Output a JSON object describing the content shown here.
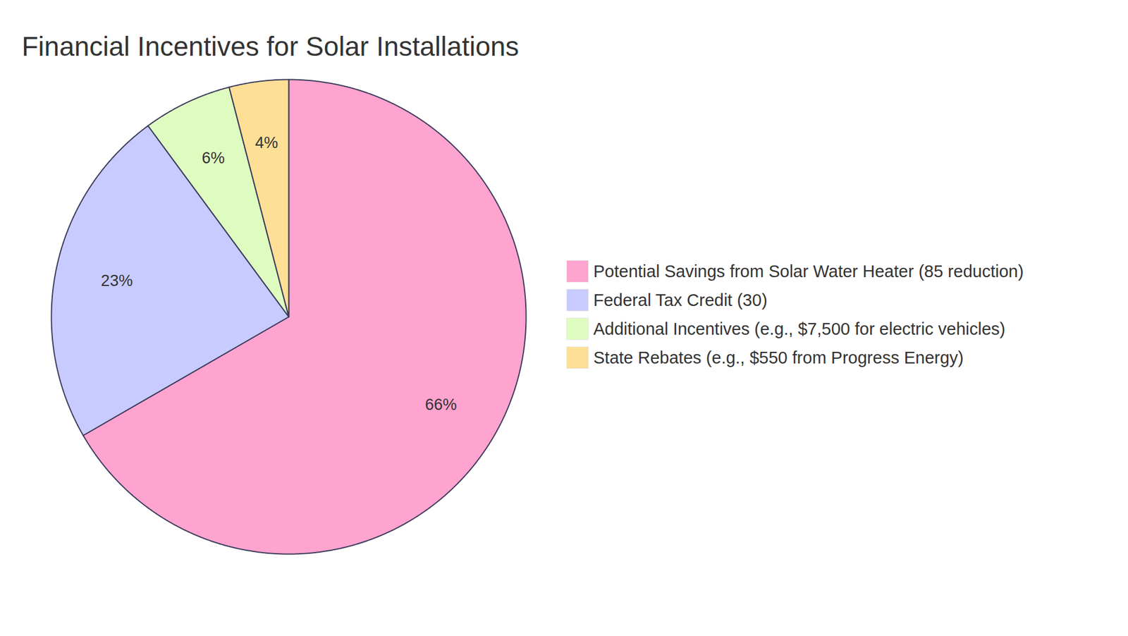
{
  "chart_data": {
    "type": "pie",
    "title": "Financial Incentives for Solar Installations",
    "categories": [
      "Potential Savings from Solar Water Heater (85 reduction)",
      "Federal Tax Credit (30)",
      "Additional Incentives (e.g., $7,500 for electric vehicles)",
      "State Rebates (e.g., $550 from Progress Energy)"
    ],
    "values": [
      66,
      23,
      6,
      4
    ],
    "value_labels": [
      "66%",
      "23%",
      "6%",
      "4%"
    ],
    "data_labels": true,
    "colors": [
      "#ffa3cf",
      "#c8cbff",
      "#dffcc0",
      "#fde095"
    ],
    "legend": "right"
  }
}
